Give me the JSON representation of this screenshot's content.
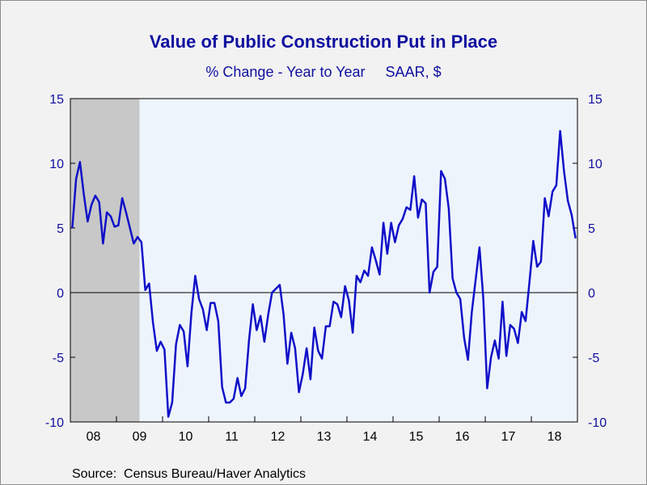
{
  "chart_data": {
    "type": "line",
    "title": "Value of Public Construction Put in Place",
    "subtitle": "% Change - Year to Year     SAAR, $",
    "source": "Source:  Census Bureau/Haver Analytics",
    "ylim": [
      -10,
      15
    ],
    "yticks_left": [
      "15",
      "10",
      "5",
      "0",
      "-5",
      "-10"
    ],
    "yticks_right": [
      "15",
      "10",
      "5",
      "0",
      "-5",
      "-10"
    ],
    "ytick_values": [
      15,
      10,
      5,
      0,
      -5,
      -10
    ],
    "x_tick_labels": [
      "08",
      "09",
      "10",
      "11",
      "12",
      "13",
      "14",
      "15",
      "16",
      "17",
      "18"
    ],
    "x_range": [
      "2008-01",
      "2018-12"
    ],
    "recession_shading": {
      "start": "2008-01",
      "end": "2009-06"
    },
    "zero_line": true,
    "colors": {
      "line": "#1010c8",
      "text": "#1010a0",
      "recession": "#c8c8c8",
      "plot_bg": "#eef4fc",
      "outer_bg": "#f2f2f2"
    },
    "series": [
      {
        "x_start": "2008-01",
        "frequency": "monthly",
        "values": [
          5.0,
          8.8,
          10.1,
          7.6,
          5.5,
          6.8,
          7.5,
          7.0,
          3.8,
          6.2,
          5.9,
          5.1,
          5.2,
          7.3,
          6.2,
          5.0,
          3.8,
          4.3,
          3.9,
          0.2,
          0.7,
          -2.3,
          -4.5,
          -3.8,
          -4.4,
          -9.6,
          -8.5,
          -4.0,
          -2.5,
          -3.0,
          -5.7,
          -1.6,
          1.3,
          -0.5,
          -1.3,
          -2.9,
          -0.8,
          -0.8,
          -2.2,
          -7.3,
          -8.5,
          -8.5,
          -8.2,
          -6.6,
          -8.0,
          -7.4,
          -3.7,
          -0.9,
          -2.9,
          -1.8,
          -3.8,
          -1.7,
          0.0,
          0.3,
          0.6,
          -1.7,
          -5.5,
          -3.1,
          -4.3,
          -7.7,
          -6.3,
          -4.3,
          -6.7,
          -2.7,
          -4.5,
          -5.1,
          -2.6,
          -2.6,
          -0.7,
          -0.9,
          -1.9,
          0.5,
          -0.6,
          -3.1,
          1.3,
          0.8,
          1.7,
          1.3,
          3.5,
          2.5,
          1.4,
          5.4,
          3.0,
          5.4,
          3.9,
          5.2,
          5.7,
          6.6,
          6.4,
          9.0,
          5.8,
          7.2,
          6.9,
          0.0,
          1.6,
          2.0,
          9.4,
          8.8,
          6.5,
          1.1,
          0.0,
          -0.5,
          -3.5,
          -5.2,
          -1.5,
          1.0,
          3.5,
          -0.5,
          -7.4,
          -5.0,
          -3.7,
          -5.1,
          -0.7,
          -4.9,
          -2.5,
          -2.8,
          -3.9,
          -1.5,
          -2.2,
          0.8,
          4.0,
          2.0,
          2.4,
          7.3,
          5.9,
          7.8,
          8.3,
          12.5,
          9.4,
          7.1,
          6.0,
          4.2
        ]
      }
    ]
  }
}
